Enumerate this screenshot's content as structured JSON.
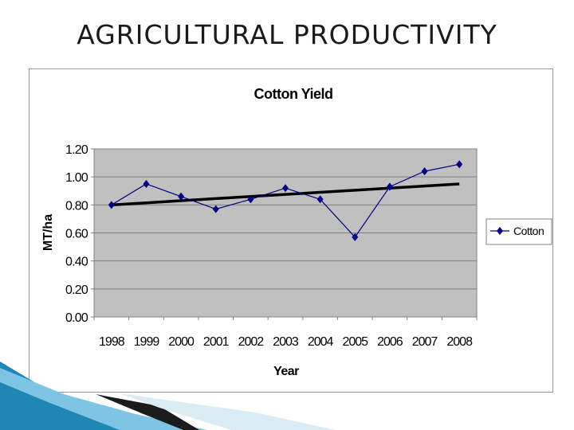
{
  "slide": {
    "title": "AGRICULTURAL PRODUCTIVITY"
  },
  "chart_data": {
    "type": "line",
    "title": "Cotton Yield",
    "xlabel": "Year",
    "ylabel": "MT/ha",
    "categories": [
      "1998",
      "1999",
      "2000",
      "2001",
      "2002",
      "2003",
      "2004",
      "2005",
      "2006",
      "2007",
      "2008"
    ],
    "series": [
      {
        "name": "Cotton",
        "color": "#000080",
        "marker": "diamond",
        "values": [
          0.8,
          0.95,
          0.86,
          0.77,
          0.84,
          0.92,
          0.84,
          0.57,
          0.93,
          1.04,
          1.09
        ]
      }
    ],
    "trendline": {
      "type": "linear",
      "color": "#000000",
      "values": [
        0.8,
        0.815,
        0.83,
        0.845,
        0.86,
        0.875,
        0.89,
        0.905,
        0.92,
        0.935,
        0.95
      ]
    },
    "ylim": [
      0,
      1.2
    ],
    "yticks": [
      "0.00",
      "0.20",
      "0.40",
      "0.60",
      "0.80",
      "1.00",
      "1.20"
    ],
    "grid": true,
    "plot_background": "#c0c0c0",
    "legend_position": "right"
  }
}
